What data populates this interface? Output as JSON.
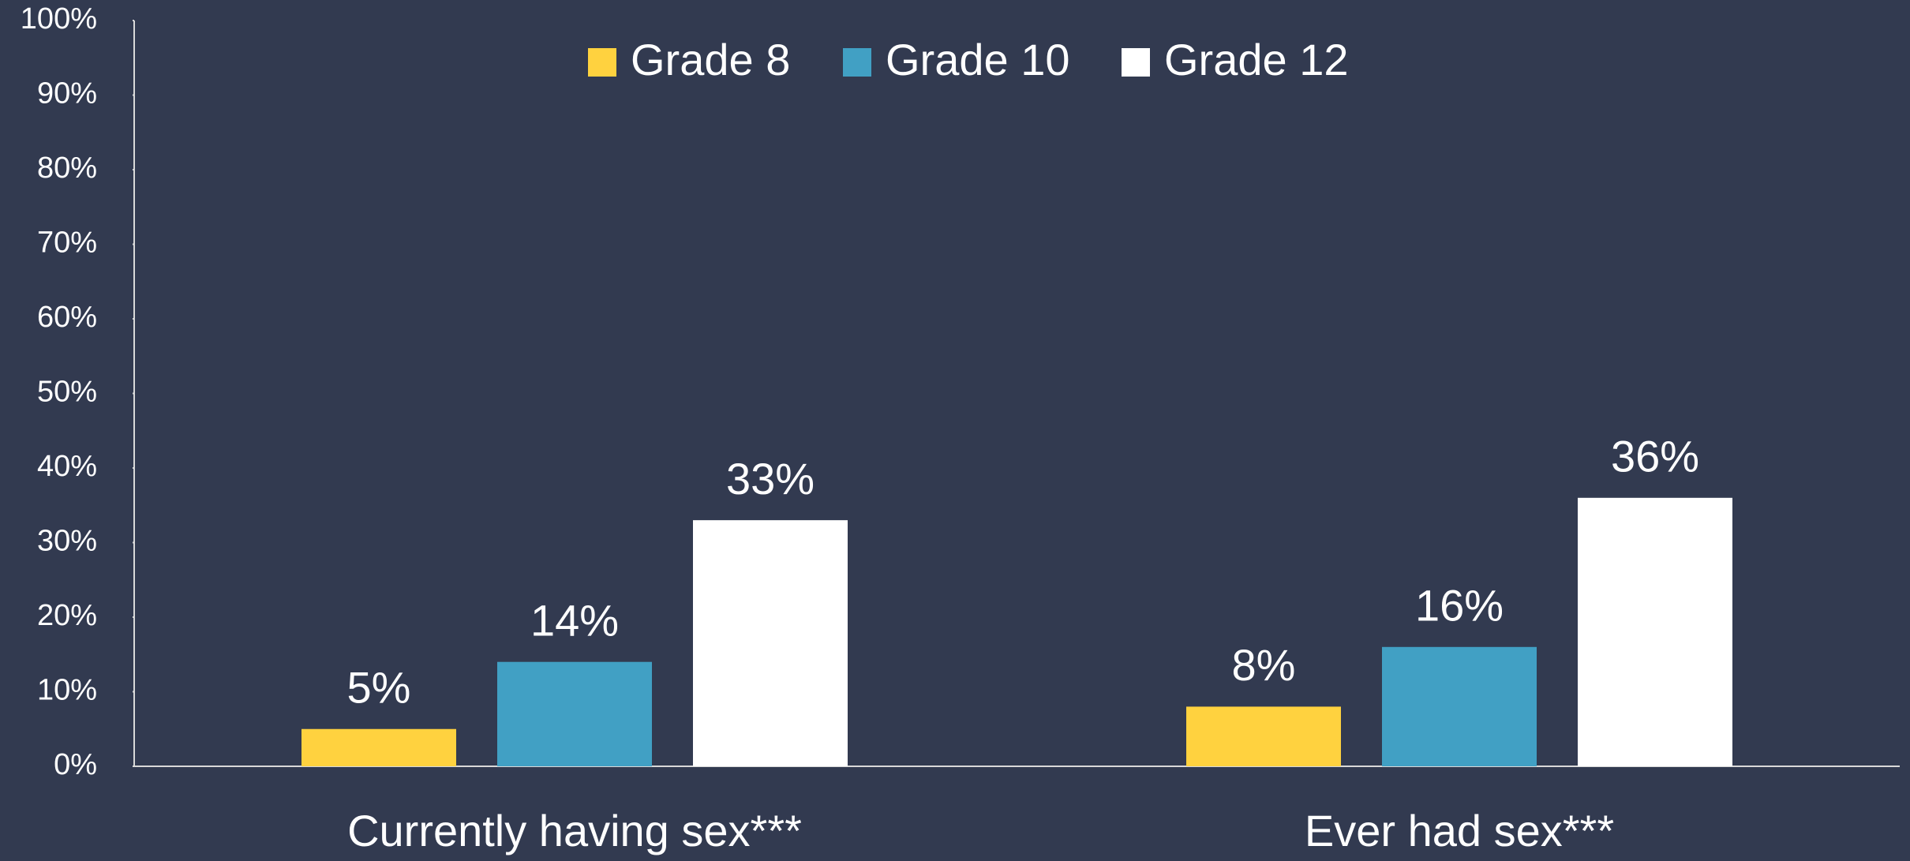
{
  "chart_data": {
    "type": "bar",
    "categories": [
      "Currently having sex***",
      "Ever had sex***"
    ],
    "series": [
      {
        "name": "Grade 8",
        "color": "#ffd23f",
        "values": [
          5,
          8
        ],
        "value_labels": [
          "5%",
          "8%"
        ]
      },
      {
        "name": "Grade 10",
        "color": "#41a0c4",
        "values": [
          14,
          16
        ],
        "value_labels": [
          "14%",
          "16%"
        ]
      },
      {
        "name": "Grade 12",
        "color": "#ffffff",
        "values": [
          33,
          36
        ],
        "value_labels": [
          "33%",
          "36%"
        ]
      }
    ],
    "ylim": [
      0,
      100
    ],
    "yticks": [
      {
        "value": 0,
        "label": "0%"
      },
      {
        "value": 10,
        "label": "10%"
      },
      {
        "value": 20,
        "label": "20%"
      },
      {
        "value": 30,
        "label": "30%"
      },
      {
        "value": 40,
        "label": "40%"
      },
      {
        "value": 50,
        "label": "50%"
      },
      {
        "value": 60,
        "label": "60%"
      },
      {
        "value": 70,
        "label": "70%"
      },
      {
        "value": 80,
        "label": "80%"
      },
      {
        "value": 90,
        "label": "90%"
      },
      {
        "value": 100,
        "label": "100%"
      }
    ],
    "legend": "top"
  }
}
